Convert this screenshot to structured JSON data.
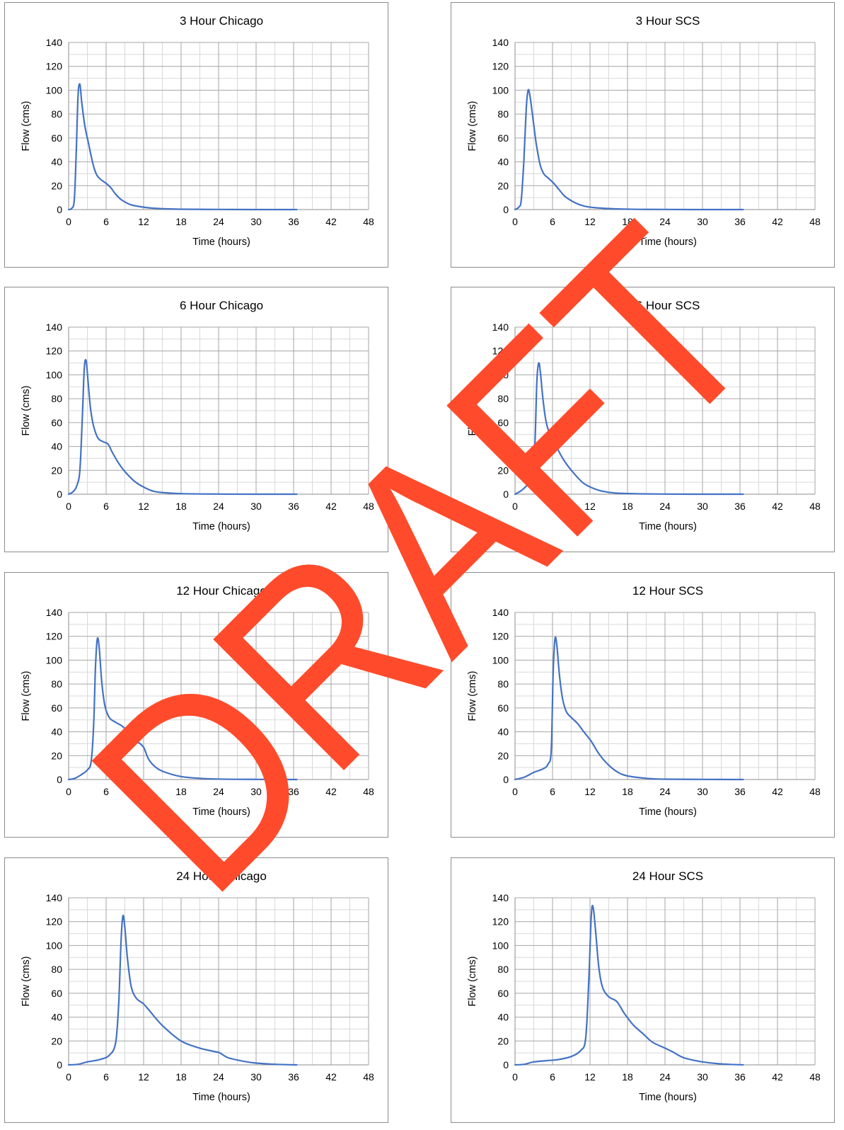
{
  "colors": {
    "series": "#4472c4",
    "watermark": "#ff4b2b"
  },
  "watermark": {
    "text": "DRAFT"
  },
  "chart_data": [
    {
      "type": "line",
      "title": "3 Hour Chicago",
      "xlabel": "Time (hours)",
      "ylabel": "Flow (cms)",
      "xlim": [
        0,
        48
      ],
      "ylim": [
        0,
        140
      ],
      "xticks": [
        0,
        6,
        12,
        18,
        24,
        30,
        36,
        42,
        48
      ],
      "yticks": [
        0,
        20,
        40,
        60,
        80,
        100,
        120,
        140
      ],
      "grid": true,
      "legend": "none",
      "series": [
        {
          "x": [
            0,
            0.5,
            0.9,
            1.2,
            1.5,
            1.8,
            2.1,
            2.6,
            3.2,
            3.9,
            4.5,
            5.2,
            6.0,
            6.8,
            7.5,
            8.5,
            10,
            12,
            14,
            18,
            24,
            30,
            36.5
          ],
          "y": [
            0,
            1,
            8,
            45,
            95,
            105,
            90,
            70,
            55,
            38,
            29,
            25,
            22,
            18,
            13,
            8,
            4,
            2,
            1,
            0.3,
            0.1,
            0,
            0
          ]
        }
      ]
    },
    {
      "type": "line",
      "title": "3 Hour SCS",
      "xlabel": "Time (hours)",
      "ylabel": "Flow (cms)",
      "xlim": [
        0,
        48
      ],
      "ylim": [
        0,
        140
      ],
      "xticks": [
        0,
        6,
        12,
        18,
        24,
        30,
        36,
        42,
        48
      ],
      "yticks": [
        0,
        20,
        40,
        60,
        80,
        100,
        120,
        140
      ],
      "grid": true,
      "legend": "none",
      "series": [
        {
          "x": [
            0,
            0.6,
            1.0,
            1.4,
            1.8,
            2.1,
            2.4,
            2.9,
            3.4,
            4.0,
            4.6,
            5.4,
            6.2,
            7.0,
            8.0,
            9.5,
            11,
            13,
            16,
            20,
            24,
            30,
            36.5
          ],
          "y": [
            0,
            2,
            8,
            40,
            85,
            100,
            95,
            75,
            55,
            38,
            30,
            26,
            22,
            17,
            11,
            6,
            3,
            1.5,
            0.6,
            0.2,
            0.1,
            0,
            0
          ]
        }
      ]
    },
    {
      "type": "line",
      "title": "6 Hour Chicago",
      "xlabel": "Time (hours)",
      "ylabel": "Flow (cms)",
      "xlim": [
        0,
        48
      ],
      "ylim": [
        0,
        140
      ],
      "xticks": [
        0,
        6,
        12,
        18,
        24,
        30,
        36,
        42,
        48
      ],
      "yticks": [
        0,
        20,
        40,
        60,
        80,
        100,
        120,
        140
      ],
      "grid": true,
      "legend": "none",
      "series": [
        {
          "x": [
            0,
            0.7,
            1.3,
            1.8,
            2.2,
            2.5,
            2.8,
            3.1,
            3.5,
            4.0,
            4.7,
            5.5,
            6.3,
            7.0,
            8.0,
            9.0,
            10.5,
            12,
            14,
            18,
            24,
            30,
            36.5
          ],
          "y": [
            0,
            2,
            7,
            20,
            65,
            105,
            112,
            95,
            72,
            57,
            47,
            44,
            42,
            35,
            26,
            19,
            11,
            6,
            2,
            0.5,
            0.1,
            0,
            0
          ]
        }
      ]
    },
    {
      "type": "line",
      "title": "6 Hour SCS",
      "xlabel": "Time (hours)",
      "ylabel": "Flow (cms)",
      "xlim": [
        0,
        48
      ],
      "ylim": [
        0,
        140
      ],
      "xticks": [
        0,
        6,
        12,
        18,
        24,
        30,
        36,
        42,
        48
      ],
      "yticks": [
        0,
        20,
        40,
        60,
        80,
        100,
        120,
        140
      ],
      "grid": true,
      "legend": "none",
      "series": [
        {
          "x": [
            0,
            1.0,
            2.0,
            2.8,
            3.2,
            3.5,
            3.8,
            4.1,
            4.5,
            5.0,
            5.6,
            6.2,
            7.0,
            8.0,
            9.5,
            11,
            12.5,
            14,
            16,
            20,
            24,
            30,
            36.5
          ],
          "y": [
            0,
            3,
            8,
            14,
            45,
            95,
            110,
            100,
            78,
            60,
            50,
            45,
            36,
            27,
            17,
            9,
            5,
            2.5,
            1,
            0.3,
            0.1,
            0,
            0
          ]
        }
      ]
    },
    {
      "type": "line",
      "title": "12 Hour Chicago",
      "xlabel": "Time (hours)",
      "ylabel": "Flow (cms)",
      "xlim": [
        0,
        48
      ],
      "ylim": [
        0,
        140
      ],
      "xticks": [
        0,
        6,
        12,
        18,
        24,
        30,
        36,
        42,
        48
      ],
      "yticks": [
        0,
        20,
        40,
        60,
        80,
        100,
        120,
        140
      ],
      "grid": true,
      "legend": "none",
      "series": [
        {
          "x": [
            0,
            1.0,
            2.0,
            3.0,
            3.6,
            4.0,
            4.3,
            4.6,
            4.9,
            5.3,
            5.8,
            6.5,
            7.5,
            8.5,
            9.5,
            11,
            12,
            12.8,
            14,
            15.5,
            18,
            21,
            24,
            30,
            36.5
          ],
          "y": [
            0,
            1,
            4,
            8,
            15,
            45,
            95,
            118,
            110,
            82,
            62,
            52,
            48,
            45,
            40,
            32,
            27,
            17,
            10,
            6,
            2.5,
            1,
            0.4,
            0.1,
            0
          ]
        }
      ]
    },
    {
      "type": "line",
      "title": "12 Hour SCS",
      "xlabel": "Time (hours)",
      "ylabel": "Flow (cms)",
      "xlim": [
        0,
        48
      ],
      "ylim": [
        0,
        140
      ],
      "xticks": [
        0,
        6,
        12,
        18,
        24,
        30,
        36,
        42,
        48
      ],
      "yticks": [
        0,
        20,
        40,
        60,
        80,
        100,
        120,
        140
      ],
      "grid": true,
      "legend": "none",
      "series": [
        {
          "x": [
            0,
            1.5,
            3.0,
            4.5,
            5.3,
            5.8,
            6.1,
            6.4,
            6.7,
            7.1,
            7.6,
            8.2,
            9.0,
            10.0,
            11.0,
            12.2,
            13.5,
            15,
            16.5,
            18,
            21,
            24,
            30,
            36.5
          ],
          "y": [
            0,
            2,
            6,
            9,
            13,
            25,
            90,
            118,
            112,
            88,
            68,
            57,
            52,
            47,
            40,
            32,
            21,
            12,
            6,
            3,
            1,
            0.3,
            0.1,
            0
          ]
        }
      ]
    },
    {
      "type": "line",
      "title": "24 Hour Chicago",
      "xlabel": "Time (hours)",
      "ylabel": "Flow (cms)",
      "xlim": [
        0,
        48
      ],
      "ylim": [
        0,
        140
      ],
      "xticks": [
        0,
        6,
        12,
        18,
        24,
        30,
        36,
        42,
        48
      ],
      "yticks": [
        0,
        20,
        40,
        60,
        80,
        100,
        120,
        140
      ],
      "grid": true,
      "legend": "none",
      "series": [
        {
          "x": [
            0,
            1.5,
            3,
            5,
            6.5,
            7.5,
            8.0,
            8.4,
            8.7,
            9.0,
            9.4,
            10.0,
            10.8,
            12,
            13,
            15,
            18,
            21,
            23.5,
            24.2,
            25.5,
            28,
            30,
            33,
            36.5
          ],
          "y": [
            0,
            0.5,
            2.5,
            4.5,
            8,
            18,
            50,
            105,
            125,
            115,
            90,
            66,
            56,
            51,
            45,
            33,
            20,
            14,
            11,
            10,
            6,
            3,
            1.5,
            0.5,
            0
          ]
        }
      ]
    },
    {
      "type": "line",
      "title": "24 Hour SCS",
      "xlabel": "Time (hours)",
      "ylabel": "Flow (cms)",
      "xlim": [
        0,
        48
      ],
      "ylim": [
        0,
        140
      ],
      "xticks": [
        0,
        6,
        12,
        18,
        24,
        30,
        36,
        42,
        48
      ],
      "yticks": [
        0,
        20,
        40,
        60,
        80,
        100,
        120,
        140
      ],
      "grid": true,
      "legend": "none",
      "series": [
        {
          "x": [
            0,
            1.5,
            3,
            5,
            7,
            9,
            10.5,
            11.3,
            11.8,
            12.2,
            12.5,
            12.9,
            13.4,
            14.0,
            15,
            16.3,
            17.5,
            19,
            20.5,
            22,
            24,
            25.2,
            27,
            30,
            33,
            36.5
          ],
          "y": [
            0,
            0.5,
            2.5,
            3.5,
            4.5,
            7,
            12,
            22,
            70,
            125,
            132,
            112,
            82,
            65,
            57,
            53,
            43,
            33,
            26,
            19,
            14,
            11,
            6,
            2.5,
            0.8,
            0
          ]
        }
      ]
    }
  ]
}
